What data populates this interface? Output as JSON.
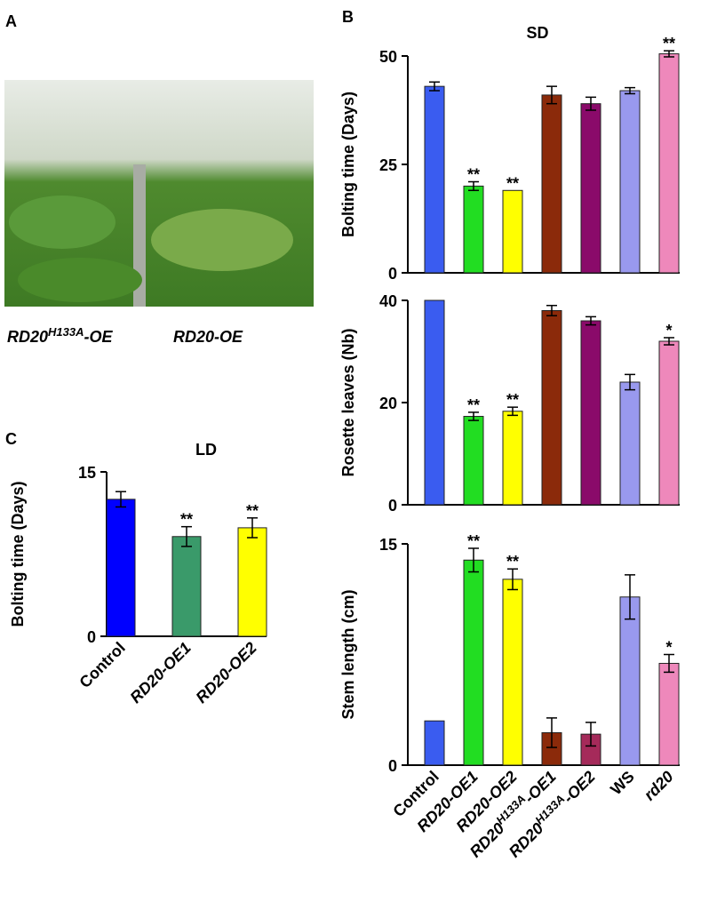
{
  "panels": {
    "a": "A",
    "b": "B",
    "c": "C"
  },
  "photo": {
    "captions": [
      [
        "RD20",
        "H133A",
        "-OE"
      ],
      [
        "RD20-OE"
      ]
    ]
  },
  "chart_data": [
    {
      "type": "bar",
      "title": "SD",
      "ylabel": "Bolting time (Days)",
      "values": [
        43,
        20,
        19,
        41,
        39,
        42,
        50.5
      ],
      "errors": [
        1,
        1,
        0,
        2,
        1.5,
        0.7,
        0.7
      ],
      "colors": [
        "#3a5cf0",
        "#22dd22",
        "#ffff00",
        "#8b2a0a",
        "#8a0a6a",
        "#9999ee",
        "#ee88bb"
      ],
      "significance": [
        null,
        "**",
        "**",
        null,
        null,
        null,
        "**"
      ],
      "ylim": [
        0,
        50
      ],
      "yticks": [
        0,
        25,
        50
      ]
    },
    {
      "type": "bar",
      "ylabel": "Rosette leaves (Nb)",
      "values": [
        40,
        17.3,
        18.3,
        38,
        36,
        24,
        32
      ],
      "errors": [
        0,
        0.8,
        0.8,
        1,
        0.8,
        1.5,
        0.7
      ],
      "colors": [
        "#3a5cf0",
        "#22dd22",
        "#ffff00",
        "#8b2a0a",
        "#8a0a6a",
        "#9999ee",
        "#ee88bb"
      ],
      "significance": [
        null,
        "**",
        "**",
        null,
        null,
        null,
        "*"
      ],
      "ylim": [
        0,
        40
      ],
      "yticks": [
        0,
        20,
        40
      ]
    },
    {
      "type": "bar",
      "ylabel": "Stem length (cm)",
      "categories": [
        "Control",
        "RD20-OE1",
        "RD20-OE2",
        [
          "RD20",
          "H133A",
          "-OE1"
        ],
        [
          "RD20",
          "H133A",
          "-OE2"
        ],
        "WS",
        "rd20"
      ],
      "values": [
        3.0,
        13.9,
        12.6,
        2.2,
        2.1,
        11.4,
        6.9
      ],
      "errors": [
        0,
        0.8,
        0.7,
        1.0,
        0.8,
        1.5,
        0.6
      ],
      "colors": [
        "#3a5cf0",
        "#22dd22",
        "#ffff00",
        "#8b2a0a",
        "#a52a5a",
        "#9999ee",
        "#ee88bb"
      ],
      "significance": [
        null,
        "**",
        "**",
        null,
        null,
        null,
        "*"
      ],
      "ylim": [
        0,
        15
      ],
      "yticks": [
        0,
        15
      ]
    },
    {
      "type": "bar",
      "title": "LD",
      "ylabel": "Bolting time (Days)",
      "categories": [
        "Control",
        "RD20-OE1",
        "RD20-OE2"
      ],
      "values": [
        12.5,
        9.1,
        9.9
      ],
      "errors": [
        0.7,
        0.9,
        0.9
      ],
      "colors": [
        "#0000ff",
        "#3a9a6a",
        "#ffff00"
      ],
      "significance": [
        null,
        "**",
        "**"
      ],
      "ylim": [
        0,
        15
      ],
      "yticks": [
        0,
        15
      ]
    }
  ]
}
